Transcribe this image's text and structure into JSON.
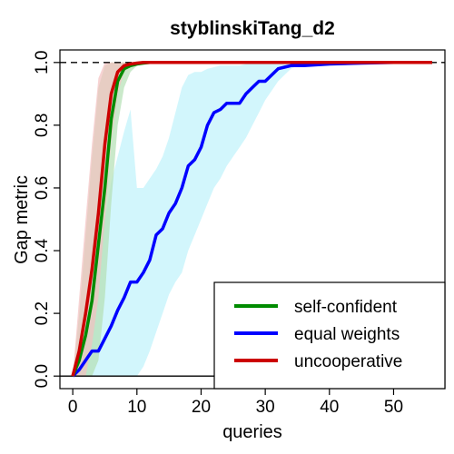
{
  "chart_data": {
    "type": "line",
    "title": "styblinskiTang_d2",
    "xlabel": "queries",
    "ylabel": "Gap metric",
    "xlim": [
      -2,
      58
    ],
    "ylim": [
      -0.04,
      1.04
    ],
    "x_ticks": [
      0,
      10,
      20,
      30,
      40,
      50
    ],
    "y_ticks": [
      0.0,
      0.2,
      0.4,
      0.6,
      0.8,
      1.0
    ],
    "x_tick_labels": [
      "0",
      "10",
      "20",
      "30",
      "40",
      "50"
    ],
    "y_tick_labels": [
      "0.0",
      "0.2",
      "0.4",
      "0.6",
      "0.8",
      "1.0"
    ],
    "reference_lines": [
      {
        "y": 1.0,
        "style": "dashed",
        "color": "#000000"
      },
      {
        "y": 0.0,
        "style": "solid",
        "color": "#000000"
      }
    ],
    "legend_position": "bottom-right",
    "series": [
      {
        "name": "equal weights",
        "color": "#0000ff",
        "band_color": "#bff2fb",
        "x": [
          0,
          1,
          2,
          3,
          4,
          5,
          6,
          7,
          8,
          9,
          10,
          11,
          12,
          13,
          14,
          15,
          16,
          17,
          18,
          19,
          20,
          21,
          22,
          23,
          24,
          25,
          26,
          27,
          28,
          29,
          30,
          31,
          32,
          33,
          34,
          35,
          36,
          40,
          45,
          50,
          56
        ],
        "values": [
          0.0,
          0.02,
          0.05,
          0.08,
          0.08,
          0.12,
          0.16,
          0.21,
          0.25,
          0.3,
          0.3,
          0.33,
          0.37,
          0.45,
          0.47,
          0.52,
          0.55,
          0.6,
          0.67,
          0.69,
          0.73,
          0.8,
          0.84,
          0.85,
          0.87,
          0.87,
          0.87,
          0.9,
          0.92,
          0.94,
          0.94,
          0.96,
          0.98,
          0.985,
          0.99,
          0.99,
          0.99,
          0.995,
          0.998,
          1.0,
          1.0
        ],
        "band_low": [
          0.0,
          0.0,
          0.0,
          0.0,
          0.0,
          0.0,
          0.0,
          0.0,
          0.0,
          0.0,
          0.0,
          0.03,
          0.08,
          0.14,
          0.2,
          0.26,
          0.3,
          0.33,
          0.4,
          0.45,
          0.5,
          0.55,
          0.6,
          0.63,
          0.67,
          0.7,
          0.73,
          0.76,
          0.8,
          0.84,
          0.88,
          0.91,
          0.94,
          0.96,
          0.98,
          0.99,
          0.99,
          0.995,
          0.998,
          1.0,
          1.0
        ],
        "band_high": [
          0.0,
          0.12,
          0.22,
          0.3,
          0.4,
          0.5,
          0.62,
          0.7,
          0.78,
          0.85,
          0.6,
          0.6,
          0.63,
          0.66,
          0.7,
          0.76,
          0.84,
          0.92,
          0.96,
          0.97,
          0.97,
          0.98,
          0.985,
          0.99,
          0.99,
          0.99,
          0.99,
          0.995,
          0.995,
          1.0,
          1.0,
          1.0,
          1.0,
          1.0,
          1.0,
          1.0,
          1.0,
          1.0,
          1.0,
          1.0,
          1.0
        ]
      },
      {
        "name": "self-confident",
        "color": "#008b00",
        "band_color": "#b3e0b3",
        "x": [
          0,
          1,
          2,
          3,
          4,
          5,
          6,
          7,
          8,
          9,
          10,
          11,
          12,
          15,
          20,
          30,
          40,
          50,
          56
        ],
        "values": [
          0.0,
          0.05,
          0.13,
          0.24,
          0.42,
          0.6,
          0.82,
          0.94,
          0.98,
          0.99,
          0.995,
          0.998,
          1.0,
          1.0,
          1.0,
          1.0,
          1.0,
          1.0,
          1.0
        ],
        "band_low": [
          0.0,
          0.0,
          0.0,
          0.0,
          0.05,
          0.25,
          0.55,
          0.8,
          0.92,
          0.97,
          0.99,
          0.995,
          1.0,
          1.0,
          1.0,
          1.0,
          1.0,
          1.0,
          1.0
        ],
        "band_high": [
          0.0,
          0.2,
          0.45,
          0.7,
          0.92,
          0.99,
          1.0,
          1.0,
          1.0,
          1.0,
          1.0,
          1.0,
          1.0,
          1.0,
          1.0,
          1.0,
          1.0,
          1.0,
          1.0
        ]
      },
      {
        "name": "uncooperative",
        "color": "#cc0000",
        "band_color": "#f3c0c0",
        "x": [
          0,
          1,
          2,
          3,
          4,
          5,
          6,
          7,
          8,
          9,
          10,
          11,
          12,
          15,
          20,
          30,
          40,
          50,
          56
        ],
        "values": [
          0.0,
          0.08,
          0.2,
          0.34,
          0.52,
          0.74,
          0.9,
          0.97,
          0.99,
          0.995,
          0.998,
          1.0,
          1.0,
          1.0,
          1.0,
          1.0,
          1.0,
          1.0,
          1.0
        ],
        "band_low": [
          0.0,
          0.0,
          0.0,
          0.1,
          0.25,
          0.5,
          0.75,
          0.9,
          0.97,
          0.99,
          1.0,
          1.0,
          1.0,
          1.0,
          1.0,
          1.0,
          1.0,
          1.0,
          1.0
        ],
        "band_high": [
          0.0,
          0.25,
          0.5,
          0.74,
          0.95,
          1.0,
          1.0,
          1.0,
          1.0,
          1.0,
          1.0,
          1.0,
          1.0,
          1.0,
          1.0,
          1.0,
          1.0,
          1.0,
          1.0
        ]
      }
    ],
    "legend_order": [
      "self-confident",
      "equal weights",
      "uncooperative"
    ]
  }
}
